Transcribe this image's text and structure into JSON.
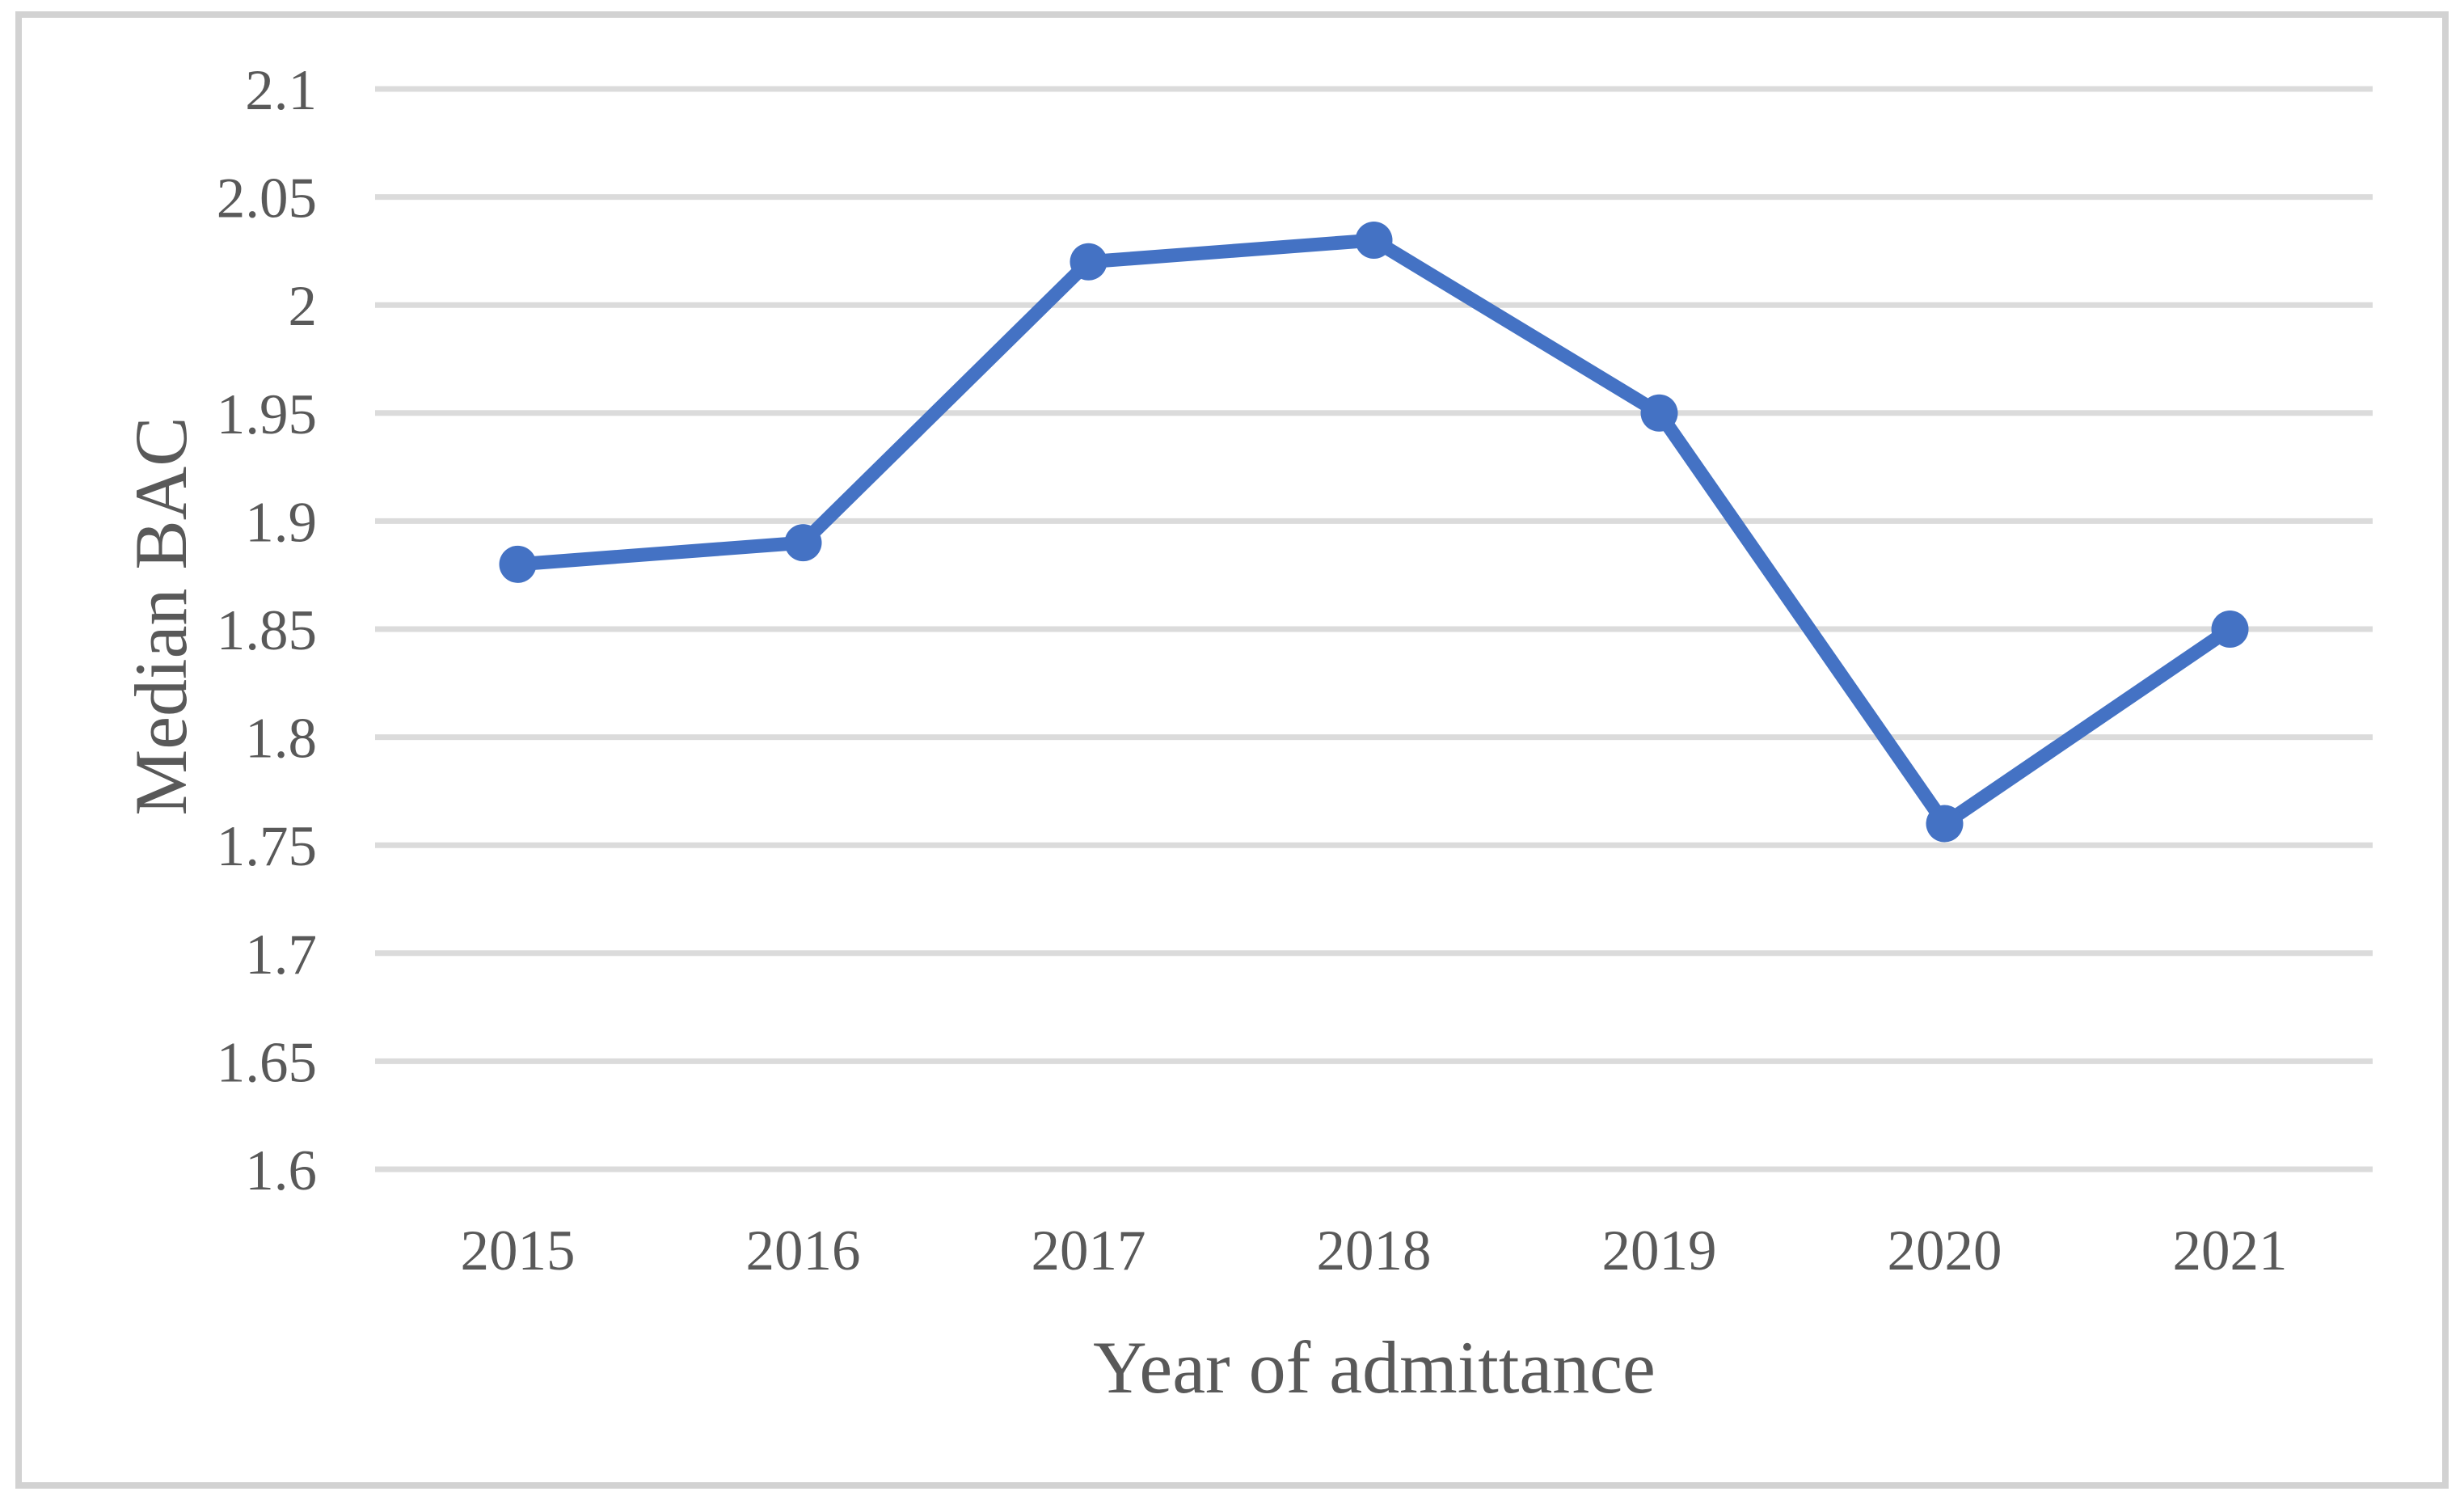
{
  "chart_data": {
    "type": "line",
    "title": "",
    "xlabel": "Year of admittance",
    "ylabel": "Median BAC",
    "categories": [
      "2015",
      "2016",
      "2017",
      "2018",
      "2019",
      "2020",
      "2021"
    ],
    "series": [
      {
        "name": "Median BAC",
        "values": [
          1.88,
          1.89,
          2.02,
          2.03,
          1.95,
          1.76,
          1.85
        ]
      }
    ],
    "y_tick_labels": [
      "2.1",
      "2.05",
      "2",
      "1.95",
      "1.9",
      "1.85",
      "1.8",
      "1.75",
      "1.7",
      "1.65",
      "1.6"
    ],
    "y_tick_values": [
      2.1,
      2.05,
      2.0,
      1.95,
      1.9,
      1.85,
      1.8,
      1.75,
      1.7,
      1.65,
      1.6
    ],
    "ylim": [
      1.6,
      2.1
    ],
    "xlim_categories": true,
    "grid": "horizontal",
    "legend": "none",
    "marker": "circle",
    "colors": {
      "line": "#4472C4",
      "marker": "#4472C4",
      "gridline": "#DBDBDB",
      "axis_text": "#595959",
      "frame_border": "#D2D2D2",
      "background": "#FFFFFF"
    }
  }
}
